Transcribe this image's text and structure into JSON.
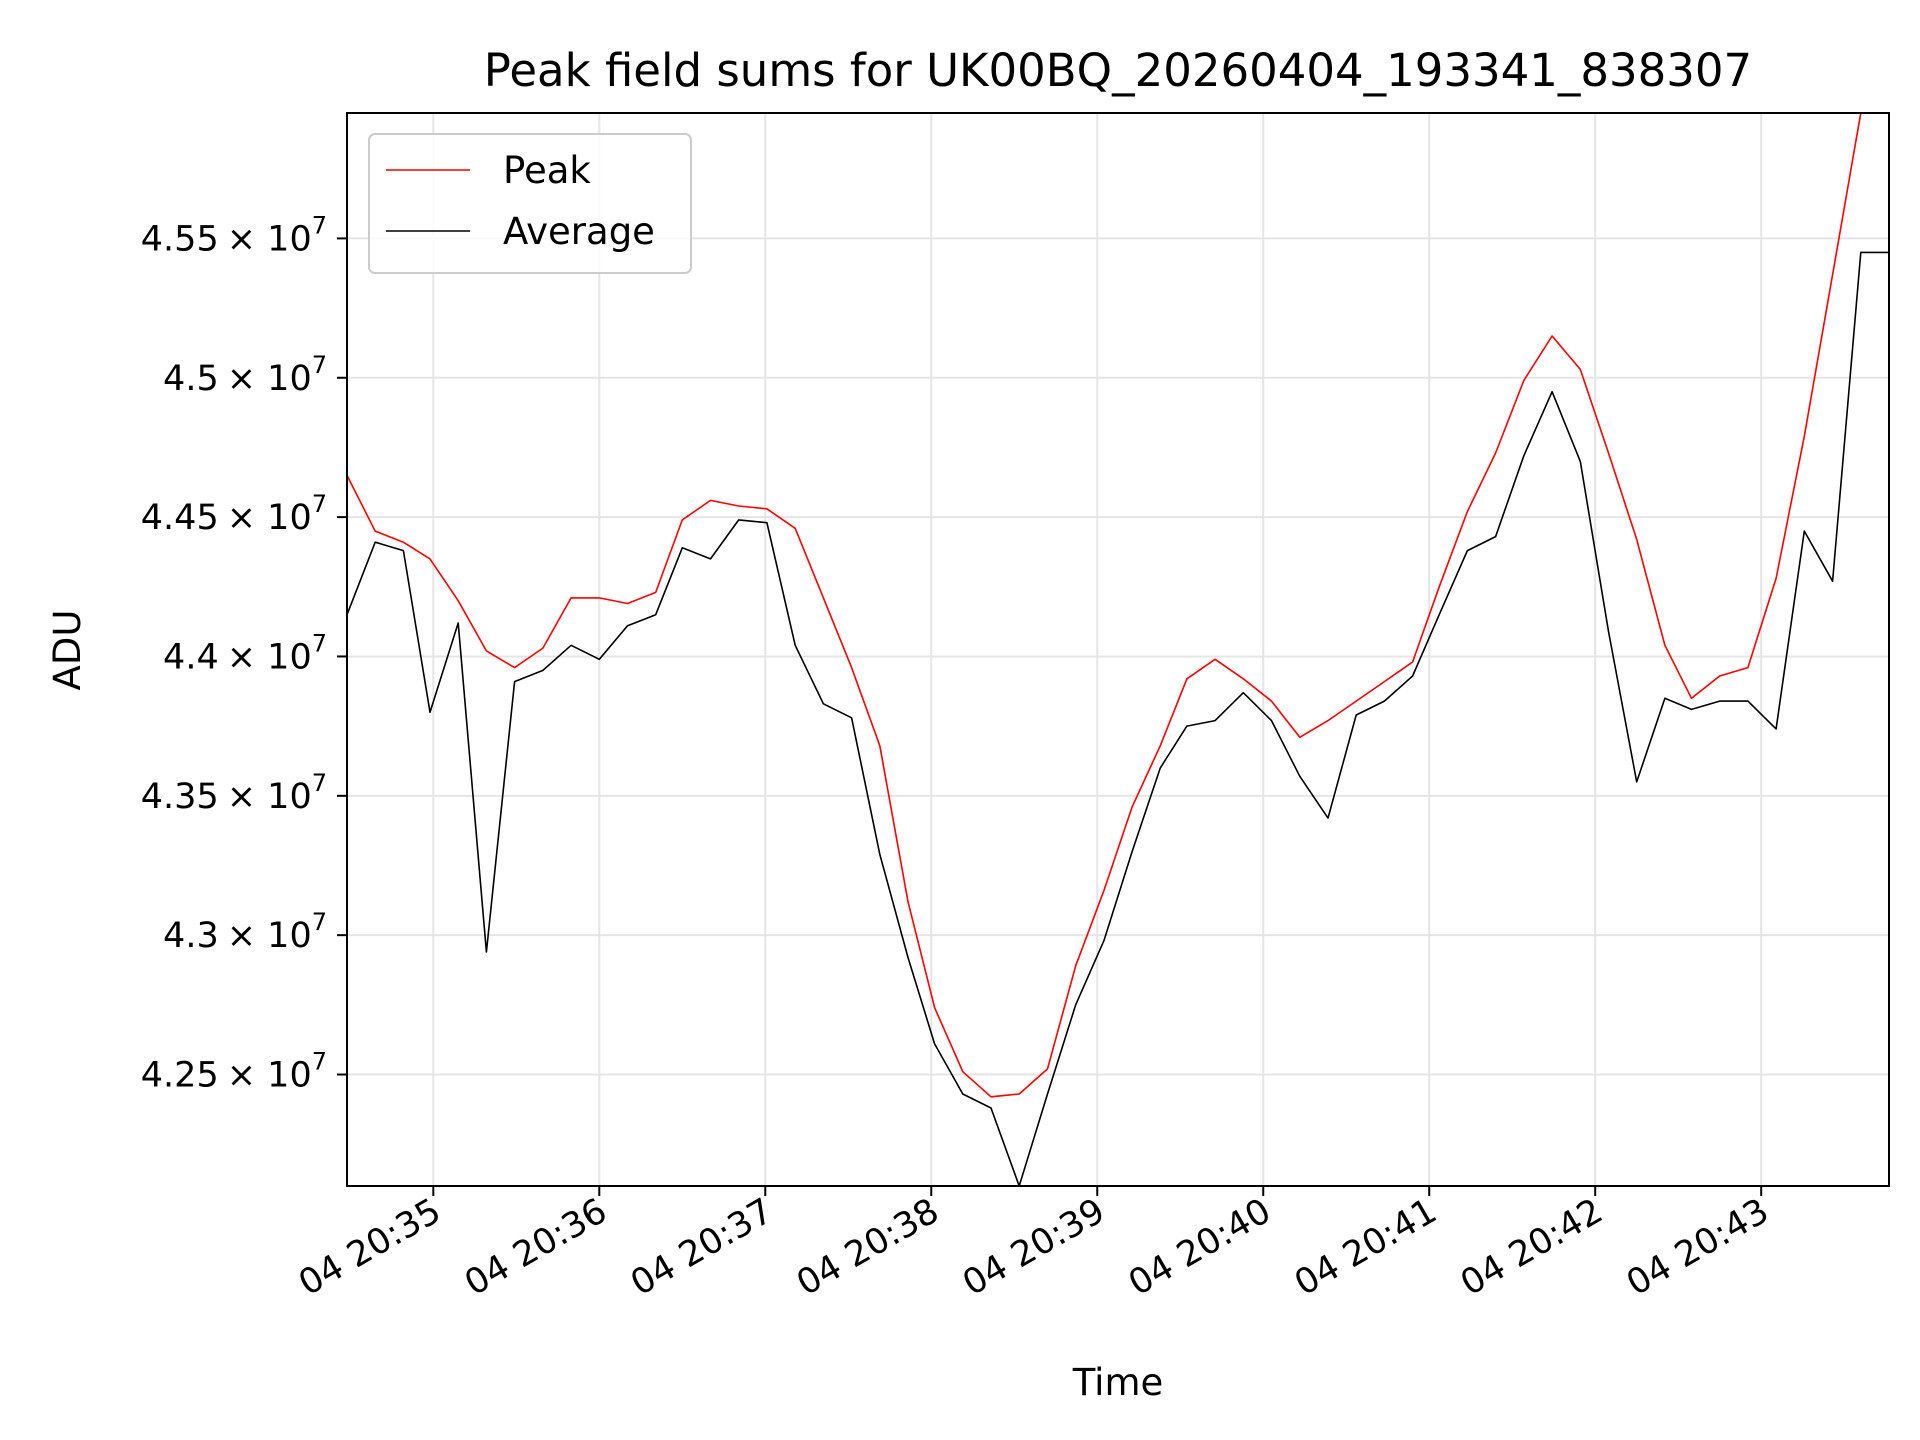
{
  "chart_data": {
    "type": "line",
    "title": "Peak field sums for UK00BQ_20260404_193341_838307",
    "xlabel": "Time",
    "ylabel": "ADU",
    "x_units": "minutes after 20:35 on the 4th",
    "xlim": [
      -0.52,
      8.77
    ],
    "ylim": [
      42100000,
      45950000
    ],
    "xticks": [
      {
        "value": 0,
        "label": "04 20:35"
      },
      {
        "value": 1,
        "label": "04 20:36"
      },
      {
        "value": 2,
        "label": "04 20:37"
      },
      {
        "value": 3,
        "label": "04 20:38"
      },
      {
        "value": 4,
        "label": "04 20:39"
      },
      {
        "value": 5,
        "label": "04 20:40"
      },
      {
        "value": 6,
        "label": "04 20:41"
      },
      {
        "value": 7,
        "label": "04 20:42"
      },
      {
        "value": 8,
        "label": "04 20:43"
      }
    ],
    "yticks": [
      {
        "value": 42500000,
        "mantissa": "4.25"
      },
      {
        "value": 43000000,
        "mantissa": "4.3"
      },
      {
        "value": 43500000,
        "mantissa": "4.35"
      },
      {
        "value": 44000000,
        "mantissa": "4.4"
      },
      {
        "value": 44500000,
        "mantissa": "4.45"
      },
      {
        "value": 45000000,
        "mantissa": "4.5"
      },
      {
        "value": 45500000,
        "mantissa": "4.55"
      }
    ],
    "ytick_suffix": "× 10",
    "ytick_exponent": "7",
    "grid": true,
    "legend_position": "top-left",
    "series": [
      {
        "name": "Peak",
        "color": "#ff0000",
        "x": [
          -0.52,
          -0.35,
          -0.18,
          -0.02,
          0.15,
          0.32,
          0.49,
          0.66,
          0.83,
          1.0,
          1.17,
          1.34,
          1.5,
          1.67,
          1.84,
          2.01,
          2.18,
          2.35,
          2.52,
          2.69,
          2.86,
          3.02,
          3.19,
          3.36,
          3.53,
          3.7,
          3.87,
          4.04,
          4.21,
          4.38,
          4.54,
          4.71,
          4.88,
          5.05,
          5.22,
          5.39,
          5.56,
          5.73,
          5.9,
          6.06,
          6.23,
          6.4,
          6.57,
          6.74,
          6.91,
          7.08,
          7.25,
          7.42,
          7.58,
          7.75,
          7.92,
          8.09,
          8.26,
          8.43,
          8.6,
          8.77
        ],
        "y": [
          44650000,
          44450000,
          44410000,
          44350000,
          44200000,
          44020000,
          43960000,
          44030000,
          44210000,
          44210000,
          44190000,
          44230000,
          44490000,
          44560000,
          44540000,
          44530000,
          44460000,
          44210000,
          43960000,
          43680000,
          43120000,
          42740000,
          42510000,
          42420000,
          42430000,
          42520000,
          42890000,
          43160000,
          43460000,
          43680000,
          43920000,
          43990000,
          43920000,
          43840000,
          43710000,
          43770000,
          43840000,
          43910000,
          43980000,
          44250000,
          44520000,
          44730000,
          44990000,
          45150000,
          45030000,
          44730000,
          44420000,
          44040000,
          43850000,
          43930000,
          43960000,
          44280000,
          44790000,
          45370000,
          45950000,
          45950000
        ]
      },
      {
        "name": "Average",
        "color": "#000000",
        "x": [
          -0.52,
          -0.35,
          -0.18,
          -0.02,
          0.15,
          0.32,
          0.49,
          0.66,
          0.83,
          1.0,
          1.17,
          1.34,
          1.5,
          1.67,
          1.84,
          2.01,
          2.18,
          2.35,
          2.52,
          2.69,
          2.86,
          3.02,
          3.19,
          3.36,
          3.53,
          3.7,
          3.87,
          4.04,
          4.21,
          4.38,
          4.54,
          4.71,
          4.88,
          5.05,
          5.22,
          5.39,
          5.56,
          5.73,
          5.9,
          6.06,
          6.23,
          6.4,
          6.57,
          6.74,
          6.91,
          7.08,
          7.25,
          7.42,
          7.58,
          7.75,
          7.92,
          8.09,
          8.26,
          8.43,
          8.6,
          8.77
        ],
        "y": [
          44150000,
          44410000,
          44380000,
          43800000,
          44120000,
          42940000,
          43910000,
          43950000,
          44040000,
          43990000,
          44110000,
          44150000,
          44390000,
          44350000,
          44490000,
          44480000,
          44040000,
          43830000,
          43780000,
          43290000,
          42920000,
          42610000,
          42430000,
          42380000,
          42100000,
          42430000,
          42750000,
          42980000,
          43300000,
          43600000,
          43750000,
          43770000,
          43870000,
          43770000,
          43570000,
          43420000,
          43790000,
          43840000,
          43930000,
          44150000,
          44380000,
          44430000,
          44720000,
          44950000,
          44700000,
          44090000,
          43550000,
          43850000,
          43810000,
          43840000,
          43840000,
          43740000,
          44450000,
          44270000,
          45450000,
          45450000
        ]
      }
    ]
  }
}
